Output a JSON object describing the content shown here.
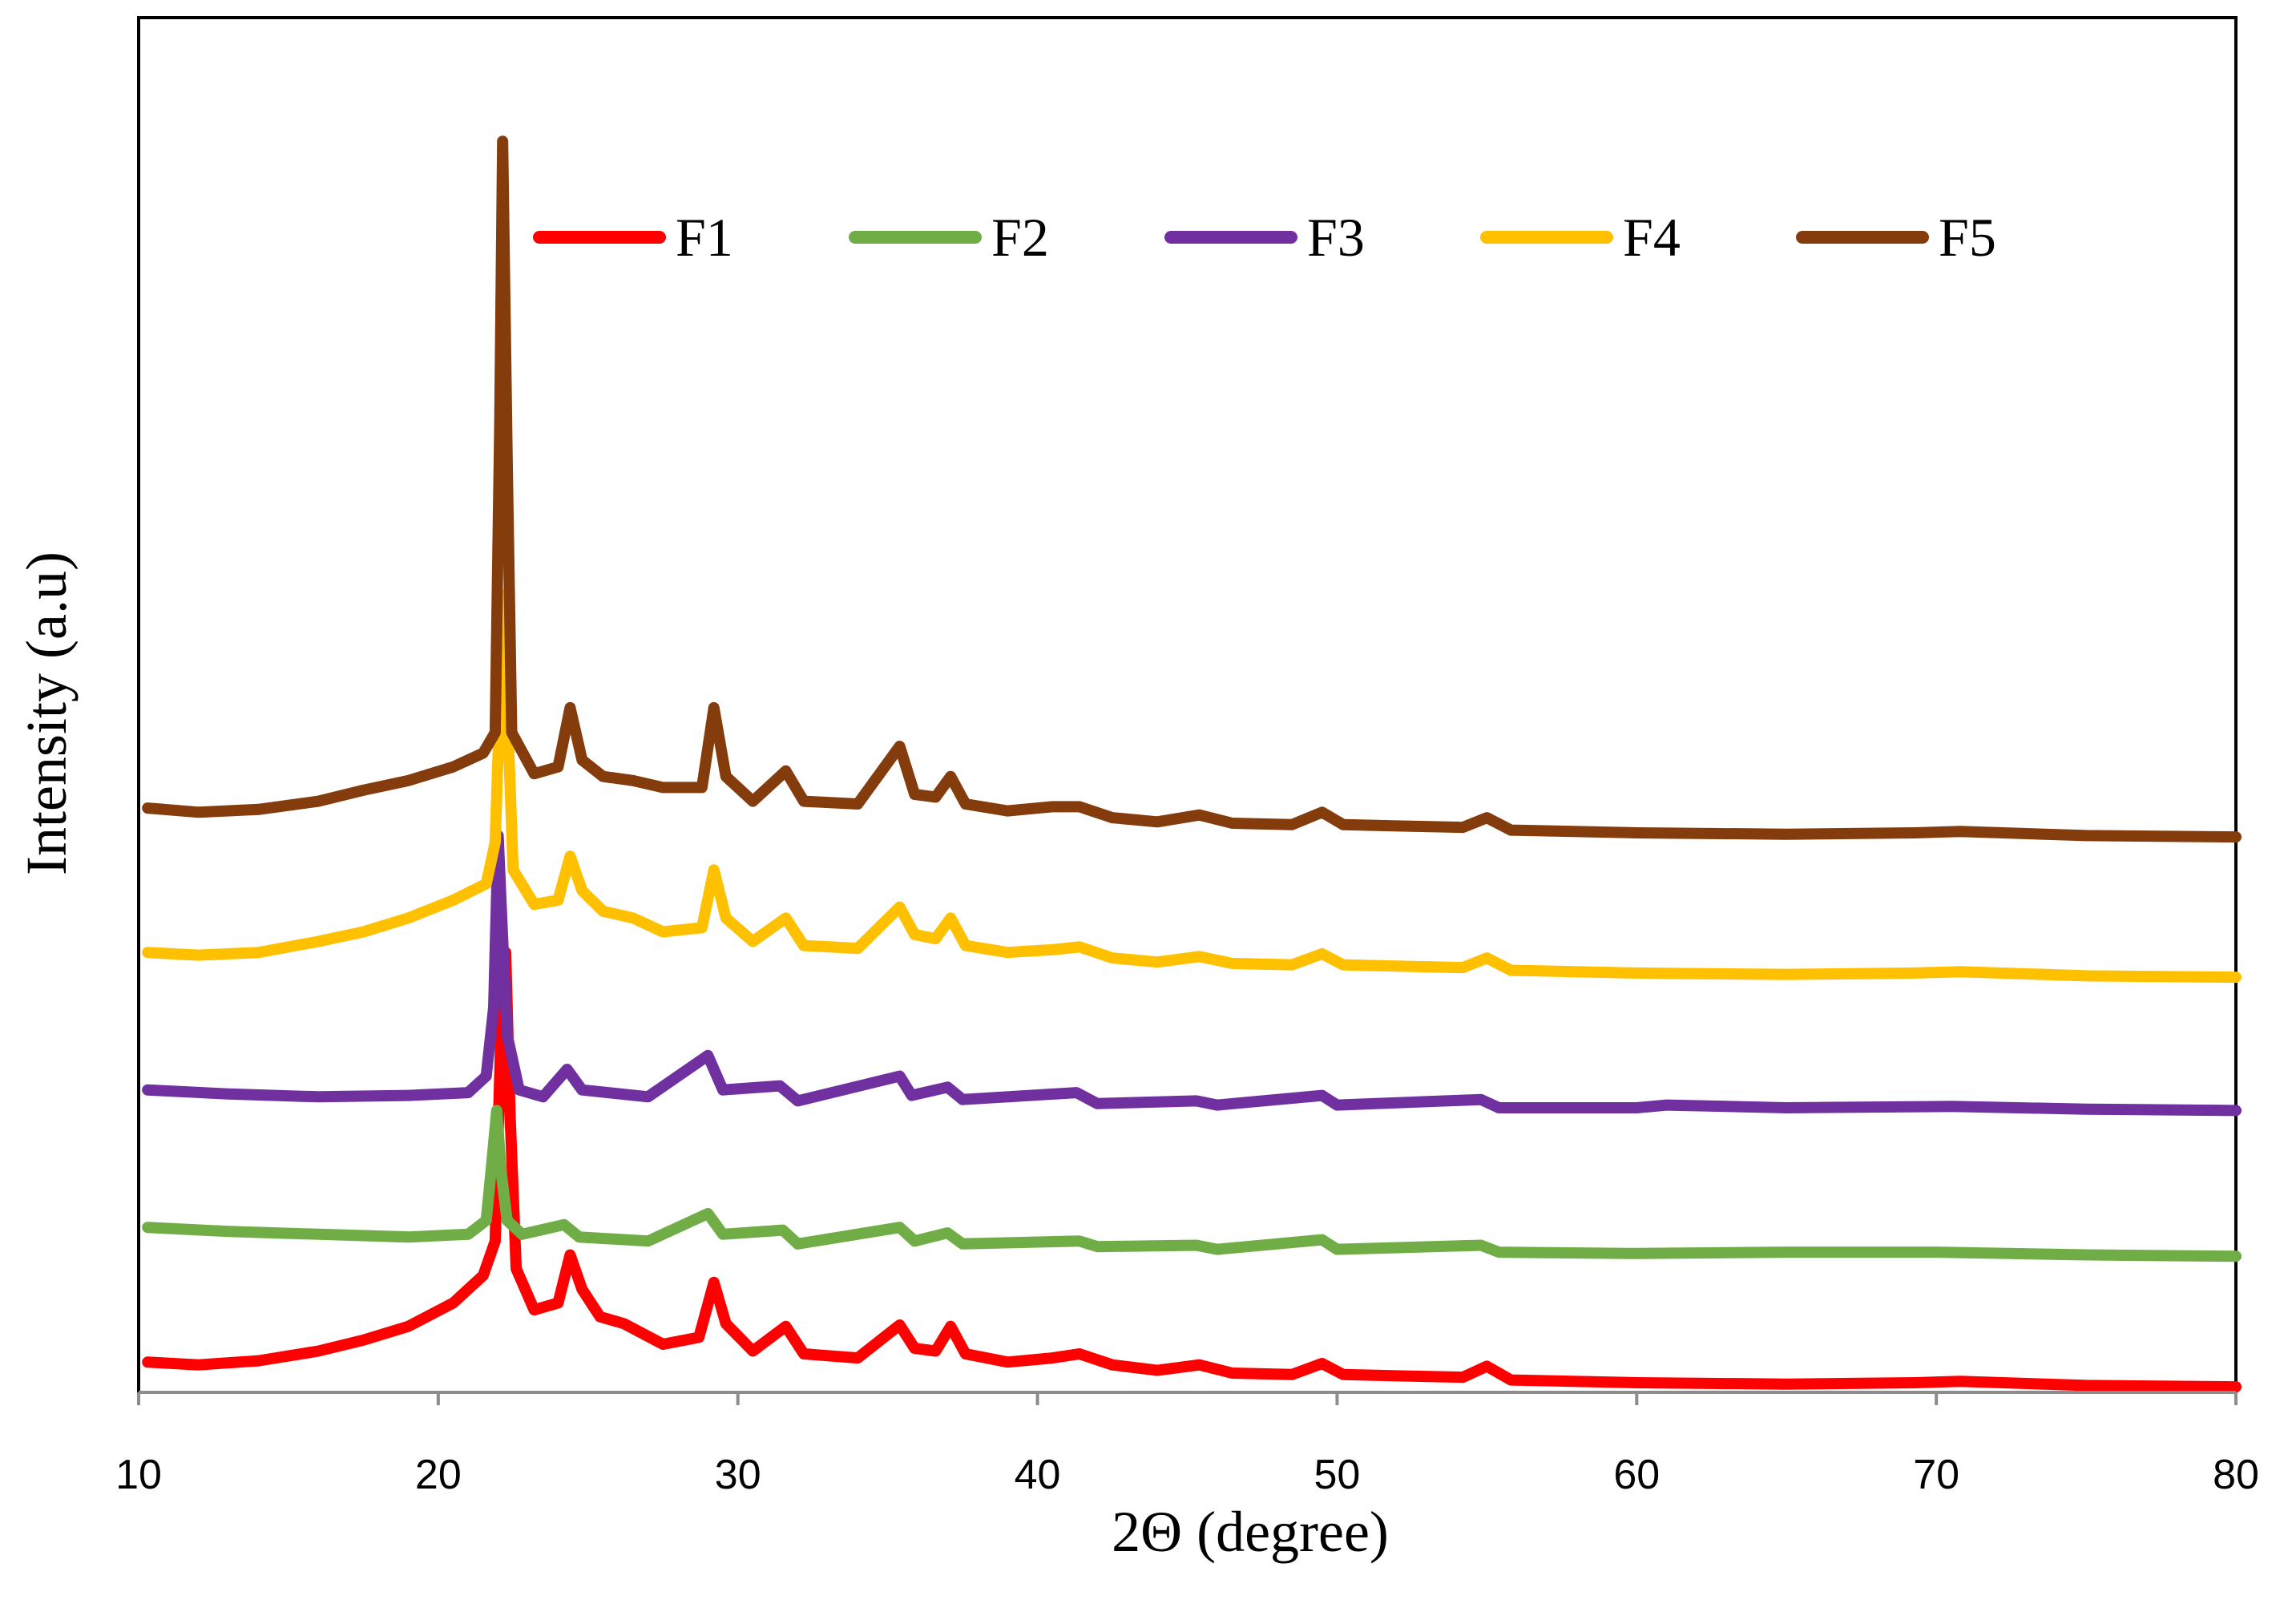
{
  "chart_data": {
    "type": "line",
    "title": "",
    "xlabel": "2Θ (degree)",
    "ylabel": "Intensity (a.u)",
    "xlim": [
      10,
      80
    ],
    "ylim": [
      0,
      100
    ],
    "x_ticks": [
      "10",
      "20",
      "30",
      "40",
      "50",
      "60",
      "70",
      "80"
    ],
    "y_ticks": [],
    "grid": false,
    "legend_position": "top",
    "series": [
      {
        "name": "F1",
        "color": "#ff0000",
        "points": [
          [
            10.3,
            2.2
          ],
          [
            12,
            2.0
          ],
          [
            14,
            2.3
          ],
          [
            16,
            3.0
          ],
          [
            17.5,
            3.8
          ],
          [
            19,
            4.8
          ],
          [
            20.5,
            6.5
          ],
          [
            21.5,
            8.5
          ],
          [
            21.9,
            11
          ],
          [
            22.1,
            27
          ],
          [
            22.25,
            32
          ],
          [
            22.4,
            20
          ],
          [
            22.6,
            9
          ],
          [
            23.2,
            6.0
          ],
          [
            24.0,
            6.5
          ],
          [
            24.4,
            10.0
          ],
          [
            24.8,
            7.5
          ],
          [
            25.4,
            5.5
          ],
          [
            26.2,
            5.0
          ],
          [
            27.5,
            3.5
          ],
          [
            28.7,
            4.0
          ],
          [
            29.2,
            8.0
          ],
          [
            29.6,
            5.0
          ],
          [
            30.5,
            3.0
          ],
          [
            31.6,
            4.8
          ],
          [
            32.2,
            2.8
          ],
          [
            34,
            2.5
          ],
          [
            35.4,
            4.9
          ],
          [
            35.9,
            3.2
          ],
          [
            36.6,
            3.0
          ],
          [
            37.1,
            4.8
          ],
          [
            37.6,
            2.8
          ],
          [
            39,
            2.2
          ],
          [
            40.5,
            2.5
          ],
          [
            41.4,
            2.8
          ],
          [
            42.5,
            2.0
          ],
          [
            44,
            1.6
          ],
          [
            45.4,
            2.0
          ],
          [
            46.5,
            1.4
          ],
          [
            48.5,
            1.3
          ],
          [
            49.5,
            2.1
          ],
          [
            50.2,
            1.3
          ],
          [
            52,
            1.2
          ],
          [
            54.2,
            1.1
          ],
          [
            55.0,
            1.9
          ],
          [
            55.8,
            0.9
          ],
          [
            60,
            0.7
          ],
          [
            65,
            0.6
          ],
          [
            69.3,
            0.7
          ],
          [
            70.8,
            0.8
          ],
          [
            75,
            0.5
          ],
          [
            80,
            0.4
          ]
        ]
      },
      {
        "name": "F2",
        "color": "#70ad47",
        "points": [
          [
            10.3,
            12.0
          ],
          [
            13,
            11.7
          ],
          [
            16,
            11.5
          ],
          [
            19,
            11.3
          ],
          [
            21,
            11.5
          ],
          [
            21.6,
            12.5
          ],
          [
            21.8,
            17
          ],
          [
            21.95,
            20.5
          ],
          [
            22.1,
            16
          ],
          [
            22.3,
            12.5
          ],
          [
            22.8,
            11.5
          ],
          [
            24.2,
            12.2
          ],
          [
            24.7,
            11.3
          ],
          [
            27,
            11.0
          ],
          [
            29.0,
            13.0
          ],
          [
            29.5,
            11.5
          ],
          [
            31.5,
            11.8
          ],
          [
            32.0,
            10.8
          ],
          [
            35.4,
            12.0
          ],
          [
            35.9,
            11.0
          ],
          [
            37.0,
            11.6
          ],
          [
            37.5,
            10.8
          ],
          [
            41.4,
            11.0
          ],
          [
            42,
            10.6
          ],
          [
            45.3,
            10.7
          ],
          [
            46,
            10.4
          ],
          [
            49.5,
            11.1
          ],
          [
            50.0,
            10.4
          ],
          [
            54.8,
            10.7
          ],
          [
            55.4,
            10.2
          ],
          [
            60,
            10.1
          ],
          [
            65,
            10.2
          ],
          [
            70,
            10.2
          ],
          [
            75,
            10.0
          ],
          [
            80,
            9.9
          ]
        ]
      },
      {
        "name": "F3",
        "color": "#7030a0",
        "points": [
          [
            10.3,
            22.0
          ],
          [
            13,
            21.7
          ],
          [
            16,
            21.5
          ],
          [
            19,
            21.6
          ],
          [
            21,
            21.8
          ],
          [
            21.6,
            23
          ],
          [
            21.85,
            28
          ],
          [
            22.0,
            40.5
          ],
          [
            22.15,
            33
          ],
          [
            22.3,
            26
          ],
          [
            22.7,
            22
          ],
          [
            23.5,
            21.5
          ],
          [
            24.3,
            23.5
          ],
          [
            24.8,
            22.0
          ],
          [
            27,
            21.5
          ],
          [
            29.0,
            24.5
          ],
          [
            29.5,
            22.0
          ],
          [
            31.4,
            22.3
          ],
          [
            32,
            21.2
          ],
          [
            35.4,
            23.0
          ],
          [
            35.8,
            21.6
          ],
          [
            37.0,
            22.2
          ],
          [
            37.5,
            21.3
          ],
          [
            41.3,
            21.8
          ],
          [
            42,
            21.0
          ],
          [
            45.3,
            21.2
          ],
          [
            46,
            20.9
          ],
          [
            49.5,
            21.6
          ],
          [
            50.0,
            20.9
          ],
          [
            54.8,
            21.3
          ],
          [
            55.4,
            20.7
          ],
          [
            60,
            20.7
          ],
          [
            61,
            20.9
          ],
          [
            65,
            20.7
          ],
          [
            70.5,
            20.8
          ],
          [
            75,
            20.6
          ],
          [
            80,
            20.5
          ]
        ]
      },
      {
        "name": "F4",
        "color": "#ffc000",
        "points": [
          [
            10.3,
            32.0
          ],
          [
            12,
            31.8
          ],
          [
            14,
            32.0
          ],
          [
            16,
            32.8
          ],
          [
            17.5,
            33.5
          ],
          [
            19,
            34.5
          ],
          [
            20.5,
            35.8
          ],
          [
            21.6,
            37
          ],
          [
            21.9,
            40
          ],
          [
            22.05,
            50
          ],
          [
            22.2,
            58
          ],
          [
            22.35,
            47
          ],
          [
            22.5,
            38
          ],
          [
            23.2,
            35.5
          ],
          [
            24.0,
            35.8
          ],
          [
            24.4,
            39.0
          ],
          [
            24.8,
            36.5
          ],
          [
            25.5,
            35.0
          ],
          [
            26.5,
            34.5
          ],
          [
            27.5,
            33.5
          ],
          [
            28.8,
            33.8
          ],
          [
            29.2,
            38.0
          ],
          [
            29.6,
            34.5
          ],
          [
            30.5,
            32.8
          ],
          [
            31.6,
            34.5
          ],
          [
            32.2,
            32.5
          ],
          [
            34,
            32.3
          ],
          [
            35.4,
            35.3
          ],
          [
            35.9,
            33.3
          ],
          [
            36.6,
            33.0
          ],
          [
            37.1,
            34.5
          ],
          [
            37.6,
            32.5
          ],
          [
            39,
            32.0
          ],
          [
            40.5,
            32.2
          ],
          [
            41.4,
            32.4
          ],
          [
            42.5,
            31.6
          ],
          [
            44,
            31.3
          ],
          [
            45.4,
            31.7
          ],
          [
            46.5,
            31.2
          ],
          [
            48.5,
            31.1
          ],
          [
            49.5,
            31.9
          ],
          [
            50.2,
            31.1
          ],
          [
            52,
            31.0
          ],
          [
            54.2,
            30.9
          ],
          [
            55.0,
            31.6
          ],
          [
            55.8,
            30.7
          ],
          [
            60,
            30.5
          ],
          [
            65,
            30.4
          ],
          [
            69.3,
            30.5
          ],
          [
            70.8,
            30.6
          ],
          [
            75,
            30.3
          ],
          [
            80,
            30.2
          ]
        ]
      },
      {
        "name": "F5",
        "color": "#843c0c",
        "points": [
          [
            10.3,
            42.5
          ],
          [
            12,
            42.2
          ],
          [
            14,
            42.4
          ],
          [
            16,
            43.0
          ],
          [
            17.5,
            43.8
          ],
          [
            19,
            44.5
          ],
          [
            20.5,
            45.5
          ],
          [
            21.5,
            46.5
          ],
          [
            21.9,
            48
          ],
          [
            22.05,
            70
          ],
          [
            22.15,
            91
          ],
          [
            22.3,
            68
          ],
          [
            22.45,
            48
          ],
          [
            23.2,
            45.0
          ],
          [
            24.0,
            45.5
          ],
          [
            24.4,
            49.8
          ],
          [
            24.8,
            46.0
          ],
          [
            25.5,
            44.8
          ],
          [
            26.5,
            44.5
          ],
          [
            27.5,
            44.0
          ],
          [
            28.8,
            44.0
          ],
          [
            29.2,
            49.8
          ],
          [
            29.6,
            44.8
          ],
          [
            30.5,
            43.0
          ],
          [
            31.6,
            45.2
          ],
          [
            32.2,
            43.0
          ],
          [
            34,
            42.8
          ],
          [
            35.4,
            47.0
          ],
          [
            35.9,
            43.5
          ],
          [
            36.6,
            43.3
          ],
          [
            37.1,
            44.8
          ],
          [
            37.6,
            42.8
          ],
          [
            39,
            42.3
          ],
          [
            40.5,
            42.6
          ],
          [
            41.4,
            42.6
          ],
          [
            42.5,
            41.8
          ],
          [
            44,
            41.5
          ],
          [
            45.4,
            42.0
          ],
          [
            46.5,
            41.4
          ],
          [
            48.5,
            41.3
          ],
          [
            49.5,
            42.2
          ],
          [
            50.2,
            41.3
          ],
          [
            52,
            41.2
          ],
          [
            54.2,
            41.1
          ],
          [
            55.0,
            41.8
          ],
          [
            55.8,
            40.9
          ],
          [
            60,
            40.7
          ],
          [
            65,
            40.6
          ],
          [
            69.3,
            40.7
          ],
          [
            70.8,
            40.8
          ],
          [
            75,
            40.5
          ],
          [
            80,
            40.4
          ]
        ]
      }
    ]
  }
}
